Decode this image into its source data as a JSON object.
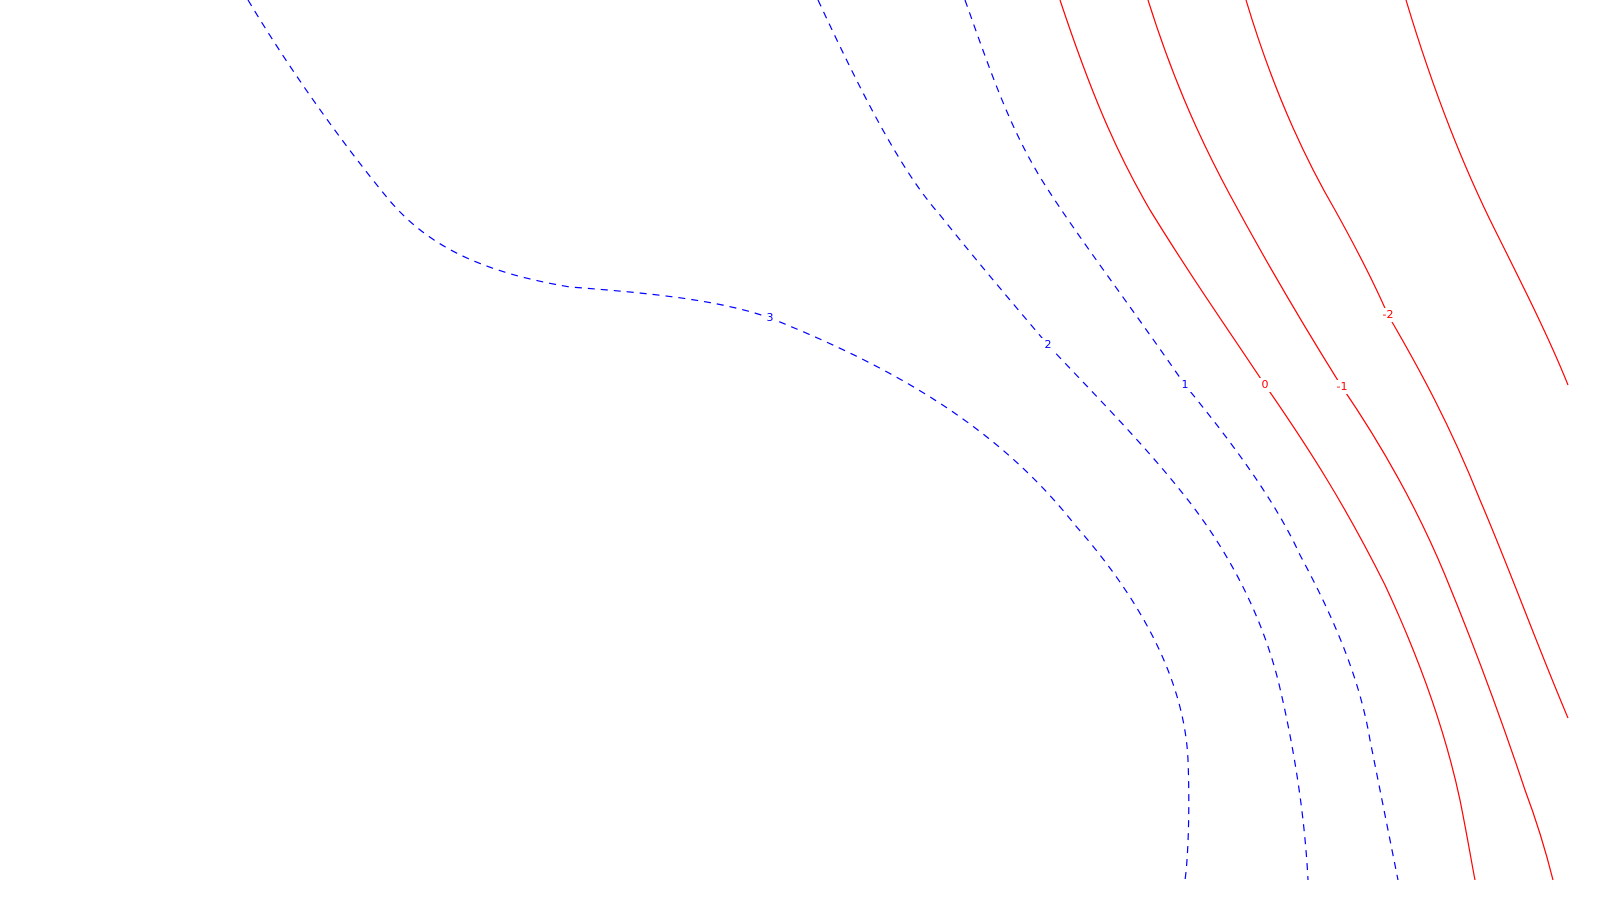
{
  "chart_data": {
    "type": "contour",
    "title": "",
    "xlabel": "",
    "ylabel": "",
    "grid": false,
    "legend": "none",
    "colors": {
      "negative_level": "#ff0000",
      "positive_level": "#0000ff",
      "background": "#ffffff"
    },
    "styles": {
      "negative_level": "solid",
      "positive_level": "dashed"
    },
    "levels": [
      {
        "value": 3,
        "label": "3",
        "sign": "positive"
      },
      {
        "value": 2,
        "label": "2",
        "sign": "positive"
      },
      {
        "value": 1,
        "label": "1",
        "sign": "positive"
      },
      {
        "value": 0,
        "label": "0",
        "sign": "negative"
      },
      {
        "value": -1,
        "label": "-1",
        "sign": "negative"
      },
      {
        "value": -2,
        "label": "-2",
        "sign": "negative"
      }
    ]
  }
}
